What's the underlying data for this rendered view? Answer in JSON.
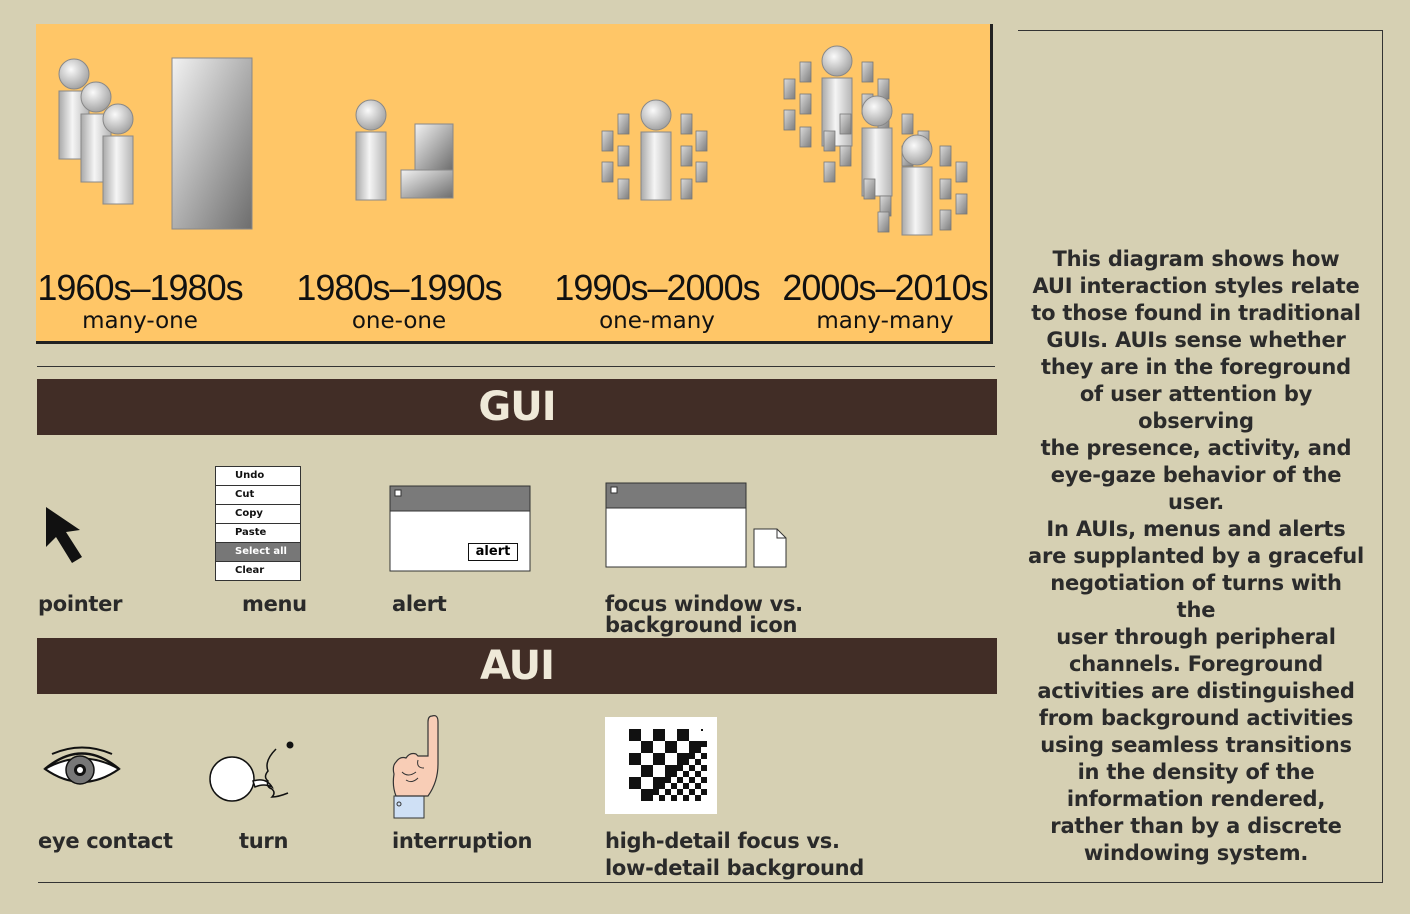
{
  "eras": [
    {
      "years": "1960s–1980s",
      "relation": "many-one"
    },
    {
      "years": "1980s–1990s",
      "relation": "one-one"
    },
    {
      "years": "1990s–2000s",
      "relation": "one-many"
    },
    {
      "years": "2000s–2010s",
      "relation": "many-many"
    }
  ],
  "gui": {
    "title": "GUI",
    "captions": {
      "pointer": "pointer",
      "menu": "menu",
      "alert": "alert",
      "focus_line1": "focus window vs.",
      "focus_line2": "background icon"
    },
    "menu_items": [
      "Undo",
      "Cut",
      "Copy",
      "Paste",
      "Select all",
      "Clear"
    ],
    "alert_button": "alert"
  },
  "aui": {
    "title": "AUI",
    "captions": {
      "eye": "eye contact",
      "turn": "turn",
      "interruption": "interruption",
      "detail_line1": "high-detail focus vs.",
      "detail_line2": "low-detail background"
    }
  },
  "sidebar_text": "This diagram shows how\nAUI interaction styles relate\nto those found in traditional\nGUIs. AUIs sense whether\nthey are in the foreground\nof user attention by observing\nthe presence, activity, and\neye-gaze behavior of the user.\nIn AUIs, menus and alerts\nare supplanted by a graceful\nnegotiation of turns with the\nuser through peripheral\nchannels. Foreground\nactivities are distinguished\nfrom background activities\nusing seamless transitions\nin the density of the\ninformation rendered,\nrather than by a discrete\nwindowing system."
}
